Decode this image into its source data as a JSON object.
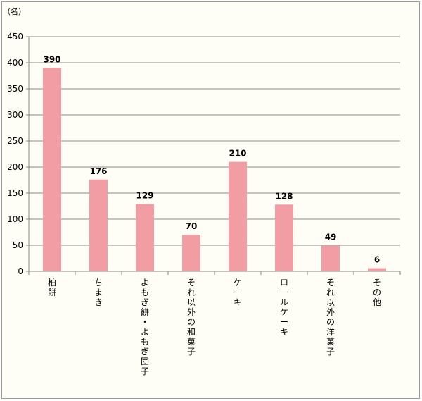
{
  "chart_data": {
    "type": "bar",
    "unit_label": "（名）",
    "categories": [
      "柏餅",
      "ちまき",
      "よもぎ餅・よもぎ団子",
      "それ以外の和菓子",
      "ケーキ",
      "ロールケーキ",
      "それ以外の洋菓子",
      "その他"
    ],
    "values": [
      390,
      176,
      129,
      70,
      210,
      128,
      49,
      6
    ],
    "value_labels": [
      "390",
      "176",
      "129",
      "70",
      "210",
      "128",
      "49",
      "6"
    ],
    "yticks": [
      "0",
      "50",
      "100",
      "150",
      "200",
      "250",
      "300",
      "350",
      "400",
      "450"
    ],
    "ylim": [
      0,
      450
    ],
    "grid": true,
    "bar_color": "#f29ca3",
    "title": "",
    "xlabel": "",
    "ylabel": ""
  }
}
